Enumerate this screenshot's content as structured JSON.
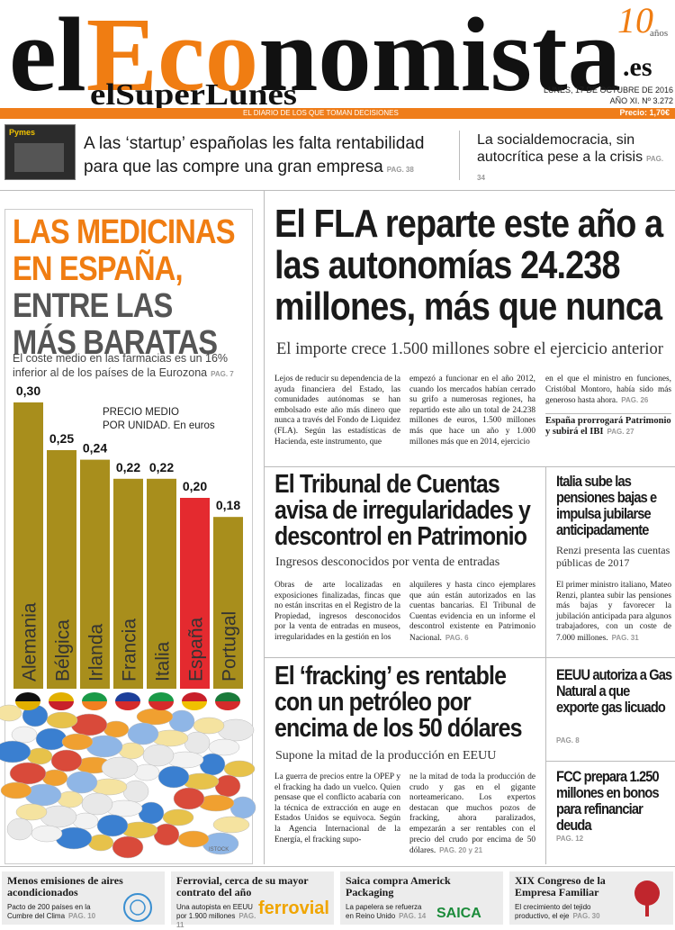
{
  "masthead": {
    "logo": [
      "el",
      "Eco",
      "nomista"
    ],
    "domain": ".es",
    "anniversary": "10",
    "anniversary_label": "años",
    "supplement": "elSuperLunes",
    "date": "LUNES, 17 DE OCTUBRE DE 2016",
    "issue": "AÑO XI. Nº 3.272",
    "tagline": "EL DIARIO DE LOS QUE TOMAN DECISIONES",
    "price": "Precio: 1,70€"
  },
  "teasers": [
    {
      "thumb": "Pymes",
      "text": "A las ‘startup’ españolas les falta rentabilidad para que las compre una gran empresa",
      "page": "PAG. 38"
    },
    {
      "text": "La socialdemocracia, sin autocrítica pese a la crisis",
      "page": "PAG. 34"
    }
  ],
  "feature": {
    "headline_highlight": [
      "LAS MEDICINAS",
      "EN ESPAÑA,"
    ],
    "headline_rest": [
      "ENTRE LAS",
      "MÁS BARATAS"
    ],
    "subtitle": "El coste medio en las farmacias es un 16% inferior al de los países de la Eurozona",
    "page": "PAG. 7",
    "credit": "ISTOCK",
    "chart": {
      "type": "bar",
      "label_lines": [
        "PRECIO MEDIO",
        "POR UNIDAD. En euros"
      ],
      "categories": [
        "Alemania",
        "Bélgica",
        "Irlanda",
        "Francia",
        "Italia",
        "España",
        "Portugal"
      ],
      "values": [
        0.3,
        0.25,
        0.24,
        0.22,
        0.22,
        0.2,
        0.18
      ],
      "value_labels": [
        "0,30",
        "0,25",
        "0,24",
        "0,22",
        "0,22",
        "0,20",
        "0,18"
      ],
      "colors": [
        "#a88e1c",
        "#a88e1c",
        "#a88e1c",
        "#a88e1c",
        "#a88e1c",
        "#e42a2f",
        "#a88e1c"
      ]
    }
  },
  "lead": {
    "headline": "El FLA reparte este año a las autonomías 24.238 millones, más que nunca",
    "deck": "El importe crece 1.500 millones sobre el ejercicio anterior",
    "body": [
      "Lejos de reducir su dependencia de la ayuda financiera del Estado, las comunidades autónomas se han embolsado este año más dinero que nunca a través del Fondo de Liquidez (FLA). Según las estadísticas de Hacienda, este instrumento, que",
      "empezó a funcionar en el año 2012, cuando los mercados habían cerrado su grifo a numerosas regiones, ha repartido este año un total de 24.238 millones de euros, 1.500 millones más que hace un año y 1.000 millones más que en 2014, ejercicio",
      "en el que el ministro en funciones, Cristóbal Montoro, había sido más generoso hasta ahora."
    ],
    "page": "PAG. 26",
    "sidebar": {
      "text": "España prorrogará Patrimonio y subirá el IBI",
      "page": "PAG. 27"
    }
  },
  "story2": {
    "headline": "El Tribunal de Cuentas avisa de irregularidades y descontrol en Patrimonio",
    "deck": "Ingresos desconocidos por venta de entradas",
    "body": [
      "Obras de arte localizadas en exposiciones finalizadas, fincas que no están inscritas en el Registro de la Propiedad, ingresos desconocidos por la venta de entradas en museos, irregularidades en la gestión en los",
      "alquileres y hasta cinco ejemplares que aún están autorizados en las cuentas bancarias. El Tribunal de Cuentas evidencia en un informe el descontrol existente en Patrimonio Nacional."
    ],
    "page": "PAG. 6"
  },
  "italia": {
    "headline": "Italia sube las pensiones bajas e impulsa jubilarse anticipadamente",
    "deck": "Renzi presenta las cuentas públicas de 2017",
    "body": "El primer ministro italiano, Mateo Renzi, plantea subir las pensiones más bajas y favorecer la jubilación anticipada para algunos trabajadores, con un coste de 7.000 millones.",
    "page": "PAG. 31"
  },
  "story3": {
    "headline": "El ‘fracking’ es rentable con un petróleo por encima de los 50 dólares",
    "deck": "Supone la mitad de la producción en EEUU",
    "body": [
      "La guerra de precios entre la OPEP y el fracking ha dado un vuelco. Quien pensase que el conflicto acabaría con la técnica de extracción en auge en Estados Unidos se equivoca. Según la Agencia Internacional de la Energía, el fracking supo-",
      "ne la mitad de toda la producción de crudo y gas en el gigante norteamericano. Los expertos destacan que muchos pozos de fracking, ahora paralizados, empezarán a ser rentables con el precio del crudo por encima de 50 dólares."
    ],
    "page": "PAG. 20 y 21"
  },
  "briefs": [
    {
      "text": "EEUU autoriza a Gas Natural a que exporte gas licuado",
      "page": "PAG. 8"
    },
    {
      "text": "FCC prepara 1.250 millones en bonos para refinanciar deuda",
      "page": "PAG. 12"
    }
  ],
  "footer": [
    {
      "title": "Menos emisiones de aires acondicionados",
      "text": "Pacto de 200 países en la Cumbre del Clima",
      "page": "PAG. 10"
    },
    {
      "title": "Ferrovial, cerca de su mayor contrato del año",
      "text": "Una autopista en EEUU por 1.900 millones",
      "page": "PAG. 11",
      "logo": "ferrovial"
    },
    {
      "title": "Saica compra Americk Packaging",
      "text": "La papelera se refuerza en Reino Unido",
      "page": "PAG. 14",
      "logo": "SAICA"
    },
    {
      "title": "XIX Congreso de la Empresa Familiar",
      "text": "El crecimiento del tejido productivo, el eje",
      "page": "PAG. 30"
    }
  ]
}
